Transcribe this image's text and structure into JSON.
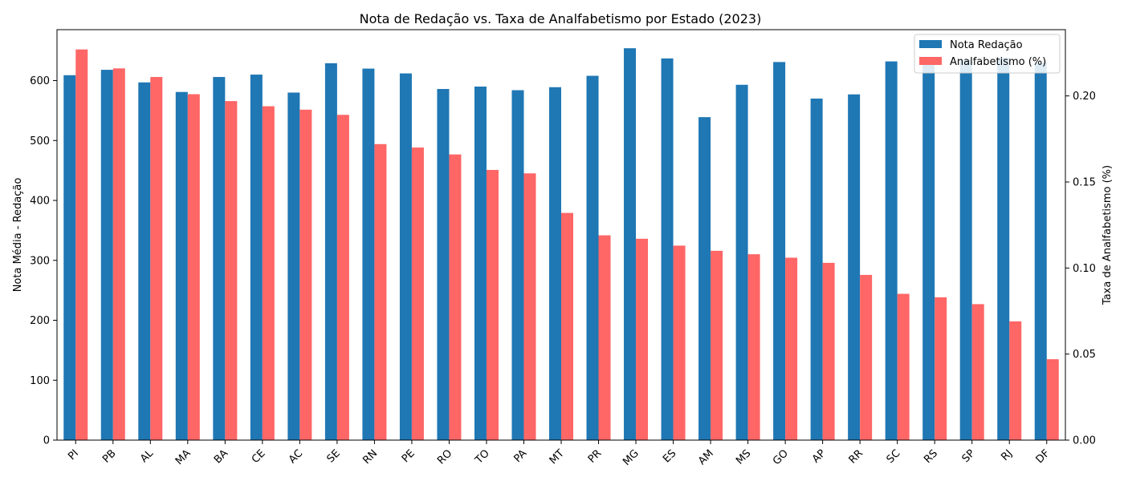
{
  "chart_data": {
    "type": "bar",
    "title": "Nota de Redação vs. Taxa de Analfabetismo por Estado (2023)",
    "xlabel": "",
    "categories": [
      "PI",
      "PB",
      "AL",
      "MA",
      "BA",
      "CE",
      "AC",
      "SE",
      "RN",
      "PE",
      "RO",
      "TO",
      "PA",
      "MT",
      "PR",
      "MG",
      "ES",
      "AM",
      "MS",
      "GO",
      "AP",
      "RR",
      "SC",
      "RS",
      "SP",
      "RJ",
      "DF"
    ],
    "series": [
      {
        "name": "Nota Redação",
        "axis": "left",
        "color": "#1f77b4",
        "values": [
          609,
          618,
          597,
          581,
          606,
          610,
          580,
          629,
          620,
          612,
          586,
          590,
          584,
          589,
          608,
          654,
          637,
          539,
          593,
          631,
          570,
          577,
          632,
          628,
          635,
          638,
          630
        ]
      },
      {
        "name": "Analfabetismo (%)",
        "axis": "right",
        "color": "#ff6666",
        "values": [
          0.227,
          0.216,
          0.211,
          0.201,
          0.197,
          0.194,
          0.192,
          0.189,
          0.172,
          0.17,
          0.166,
          0.157,
          0.155,
          0.132,
          0.119,
          0.117,
          0.113,
          0.11,
          0.108,
          0.106,
          0.103,
          0.096,
          0.085,
          0.083,
          0.079,
          0.069,
          0.047
        ]
      }
    ],
    "y_left": {
      "label": "Nota Média - Redação",
      "lim": [
        0,
        685
      ],
      "ticks": [
        0,
        100,
        200,
        300,
        400,
        500,
        600
      ],
      "tick_labels": [
        "0",
        "100",
        "200",
        "300",
        "400",
        "500",
        "600"
      ]
    },
    "y_right": {
      "label": "Taxa de Analfabetismo (%)",
      "lim": [
        0,
        0.2385
      ],
      "ticks": [
        0,
        0.05,
        0.1,
        0.15,
        0.2
      ],
      "tick_labels": [
        "0.00",
        "0.05",
        "0.10",
        "0.15",
        "0.20"
      ]
    },
    "grid": false,
    "legend": "top-right"
  }
}
